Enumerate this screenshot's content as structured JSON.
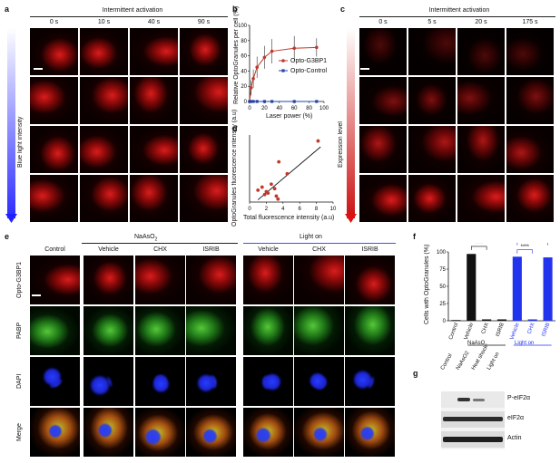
{
  "panel_a": {
    "letter": "a",
    "header": "Intermittent activation",
    "times": [
      "0 s",
      "10 s",
      "40 s",
      "90 s"
    ],
    "ylabel": "Blue light intensity"
  },
  "panel_b": {
    "letter": "b",
    "ylabel": "Relative OptoGranules per cell (%)",
    "xlabel": "Laser power (%)",
    "legend": [
      "Opto-G3BP1",
      "Opto-Control"
    ],
    "xticks": [
      "0",
      "20",
      "40",
      "60",
      "80",
      "100"
    ],
    "yticks": [
      "0",
      "20",
      "40",
      "60",
      "80",
      "100"
    ]
  },
  "panel_c": {
    "letter": "c",
    "header": "Intermittent activation",
    "times": [
      "0 s",
      "5 s",
      "20 s",
      "175 s"
    ],
    "ylabel": "Expression level"
  },
  "panel_d": {
    "letter": "d",
    "ylabel": "OptoGranules fluorescence intensity (a.u)",
    "xlabel": "Total fluorescence intensity (a.u)",
    "xticks": [
      "0",
      "2",
      "4",
      "6",
      "8",
      "10"
    ]
  },
  "panel_e": {
    "letter": "e",
    "group1": "NaAsO",
    "group1_sub": "2",
    "group2": "Light on",
    "columns": [
      "Control",
      "Vehicle",
      "CHX",
      "ISRIB",
      "Vehicle",
      "CHX",
      "ISRIB"
    ],
    "rows": [
      "Opto-G3BP1",
      "PABP",
      "DAPI",
      "Merge"
    ]
  },
  "panel_f": {
    "letter": "f",
    "ylabel": "Cells with OptoGranules (%)",
    "sig": [
      "****",
      "****",
      "ns"
    ],
    "categories": [
      "Control",
      "Vehicle",
      "CHX",
      "ISRIB",
      "Vehicle",
      "CHX",
      "ISRIB"
    ],
    "group1": "NaAsO",
    "group1_sub": "2",
    "group2": "Light on",
    "yticks": [
      "0",
      "25",
      "50",
      "75",
      "100"
    ]
  },
  "panel_g": {
    "letter": "g",
    "lanes": [
      "Control",
      "NaAsO2",
      "Heat shock",
      "Light on"
    ],
    "bands": [
      "P-eIF2α",
      "eIF2α",
      "Actin"
    ]
  },
  "chart_data": [
    {
      "type": "line",
      "panel": "b",
      "xlabel": "Laser power (%)",
      "ylabel": "Relative OptoGranules per cell (%)",
      "xlim": [
        0,
        100
      ],
      "ylim": [
        0,
        100
      ],
      "series": [
        {
          "name": "Opto-G3BP1",
          "color": "#c0392b",
          "x": [
            0,
            2,
            5,
            10,
            20,
            30,
            60,
            90
          ],
          "y": [
            0,
            18,
            30,
            45,
            58,
            66,
            70,
            71
          ],
          "err": [
            3,
            10,
            12,
            14,
            15,
            16,
            16,
            12
          ]
        },
        {
          "name": "Opto-Control",
          "color": "#2244aa",
          "x": [
            0,
            2,
            5,
            10,
            20,
            30,
            60,
            90
          ],
          "y": [
            0,
            0,
            0,
            0,
            0,
            0,
            0,
            0
          ]
        }
      ]
    },
    {
      "type": "scatter",
      "panel": "d",
      "xlabel": "Total fluorescence intensity (a.u)",
      "ylabel": "OptoGranules fluorescence intensity (a.u)",
      "xlim": [
        0,
        10
      ],
      "ylim": [
        0,
        45
      ],
      "points": [
        {
          "x": 1.0,
          "y": 8
        },
        {
          "x": 1.5,
          "y": 10
        },
        {
          "x": 1.8,
          "y": 5
        },
        {
          "x": 2.0,
          "y": 7
        },
        {
          "x": 2.2,
          "y": 6
        },
        {
          "x": 2.6,
          "y": 12
        },
        {
          "x": 3.0,
          "y": 9
        },
        {
          "x": 3.2,
          "y": 4
        },
        {
          "x": 3.4,
          "y": 2
        },
        {
          "x": 3.5,
          "y": 27
        },
        {
          "x": 4.5,
          "y": 19
        },
        {
          "x": 8.2,
          "y": 41
        }
      ],
      "fit": {
        "x": [
          1.0,
          8.5
        ],
        "y": [
          1.5,
          37
        ]
      }
    },
    {
      "type": "bar",
      "panel": "f",
      "ylabel": "Cells with OptoGranules (%)",
      "ylim": [
        0,
        100
      ],
      "categories": [
        "Control",
        "Vehicle",
        "CHX",
        "ISRIB",
        "Vehicle",
        "CHX",
        "ISRIB"
      ],
      "values": [
        1,
        97,
        2,
        2,
        93,
        2,
        92
      ],
      "colors": [
        "#111111",
        "#111111",
        "#111111",
        "#111111",
        "#2233ee",
        "#2233ee",
        "#2233ee"
      ]
    }
  ]
}
